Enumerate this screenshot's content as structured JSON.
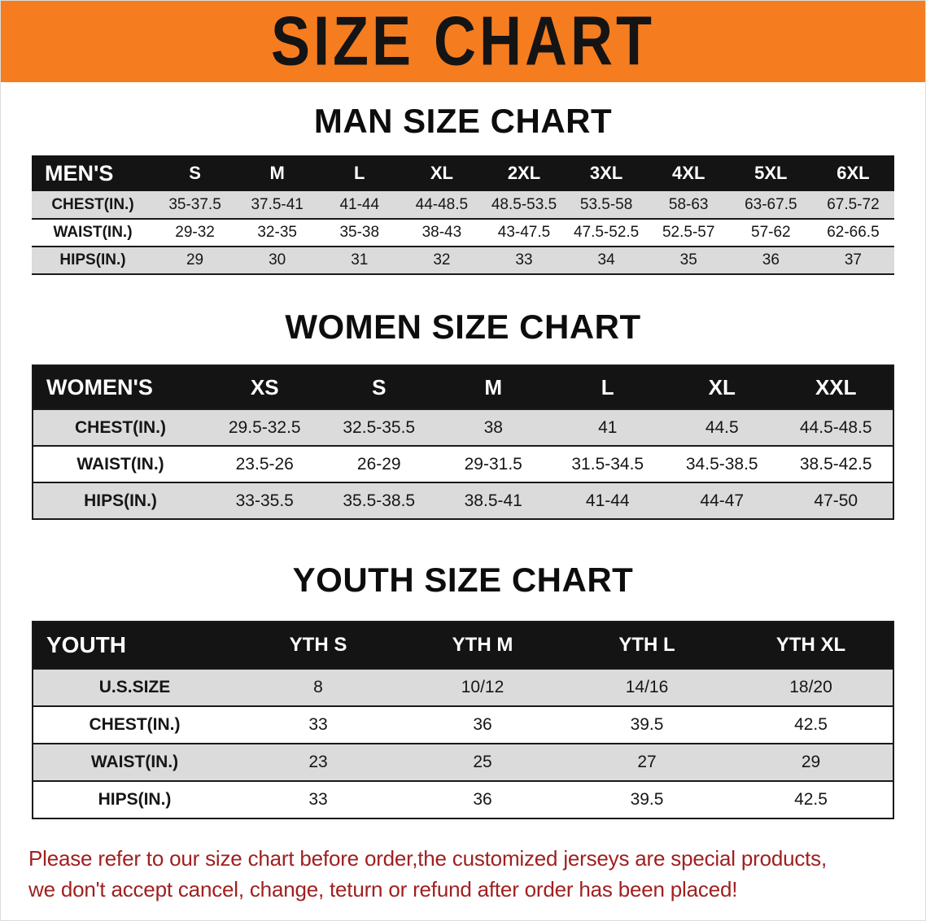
{
  "banner": {
    "title": "SIZE CHART"
  },
  "colors": {
    "banner_bg": "#f57d1f",
    "banner_text": "#141414",
    "table_header_bg": "#141414",
    "table_header_text": "#ffffff",
    "row_alt_bg": "#dbdbdb",
    "table_border": "#1a1a1a",
    "disclaimer_text": "#a02020"
  },
  "men": {
    "heading": "MAN SIZE CHART",
    "label": "MEN'S",
    "sizes": [
      "S",
      "M",
      "L",
      "XL",
      "2XL",
      "3XL",
      "4XL",
      "5XL",
      "6XL"
    ],
    "rows": [
      {
        "label": "CHEST(IN.)",
        "values": [
          "35-37.5",
          "37.5-41",
          "41-44",
          "44-48.5",
          "48.5-53.5",
          "53.5-58",
          "58-63",
          "63-67.5",
          "67.5-72"
        ]
      },
      {
        "label": "WAIST(IN.)",
        "values": [
          "29-32",
          "32-35",
          "35-38",
          "38-43",
          "43-47.5",
          "47.5-52.5",
          "52.5-57",
          "57-62",
          "62-66.5"
        ]
      },
      {
        "label": "HIPS(IN.)",
        "values": [
          "29",
          "30",
          "31",
          "32",
          "33",
          "34",
          "35",
          "36",
          "37"
        ]
      }
    ]
  },
  "women": {
    "heading": "WOMEN SIZE CHART",
    "label": "WOMEN'S",
    "sizes": [
      "XS",
      "S",
      "M",
      "L",
      "XL",
      "XXL"
    ],
    "rows": [
      {
        "label": "CHEST(IN.)",
        "values": [
          "29.5-32.5",
          "32.5-35.5",
          "38",
          "41",
          "44.5",
          "44.5-48.5"
        ]
      },
      {
        "label": "WAIST(IN.)",
        "values": [
          "23.5-26",
          "26-29",
          "29-31.5",
          "31.5-34.5",
          "34.5-38.5",
          "38.5-42.5"
        ]
      },
      {
        "label": "HIPS(IN.)",
        "values": [
          "33-35.5",
          "35.5-38.5",
          "38.5-41",
          "41-44",
          "44-47",
          "47-50"
        ]
      }
    ]
  },
  "youth": {
    "heading": "YOUTH SIZE CHART",
    "label": "YOUTH",
    "sizes": [
      "YTH S",
      "YTH M",
      "YTH L",
      "YTH XL"
    ],
    "rows": [
      {
        "label": "U.S.SIZE",
        "values": [
          "8",
          "10/12",
          "14/16",
          "18/20"
        ]
      },
      {
        "label": "CHEST(IN.)",
        "values": [
          "33",
          "36",
          "39.5",
          "42.5"
        ]
      },
      {
        "label": "WAIST(IN.)",
        "values": [
          "23",
          "25",
          "27",
          "29"
        ]
      },
      {
        "label": "HIPS(IN.)",
        "values": [
          "33",
          "36",
          "39.5",
          "42.5"
        ]
      }
    ]
  },
  "disclaimer": {
    "line1": "Please refer to our size chart before order,the customized jerseys are special products,",
    "line2": "we don't accept cancel, change, teturn or refund after order has been placed!"
  }
}
